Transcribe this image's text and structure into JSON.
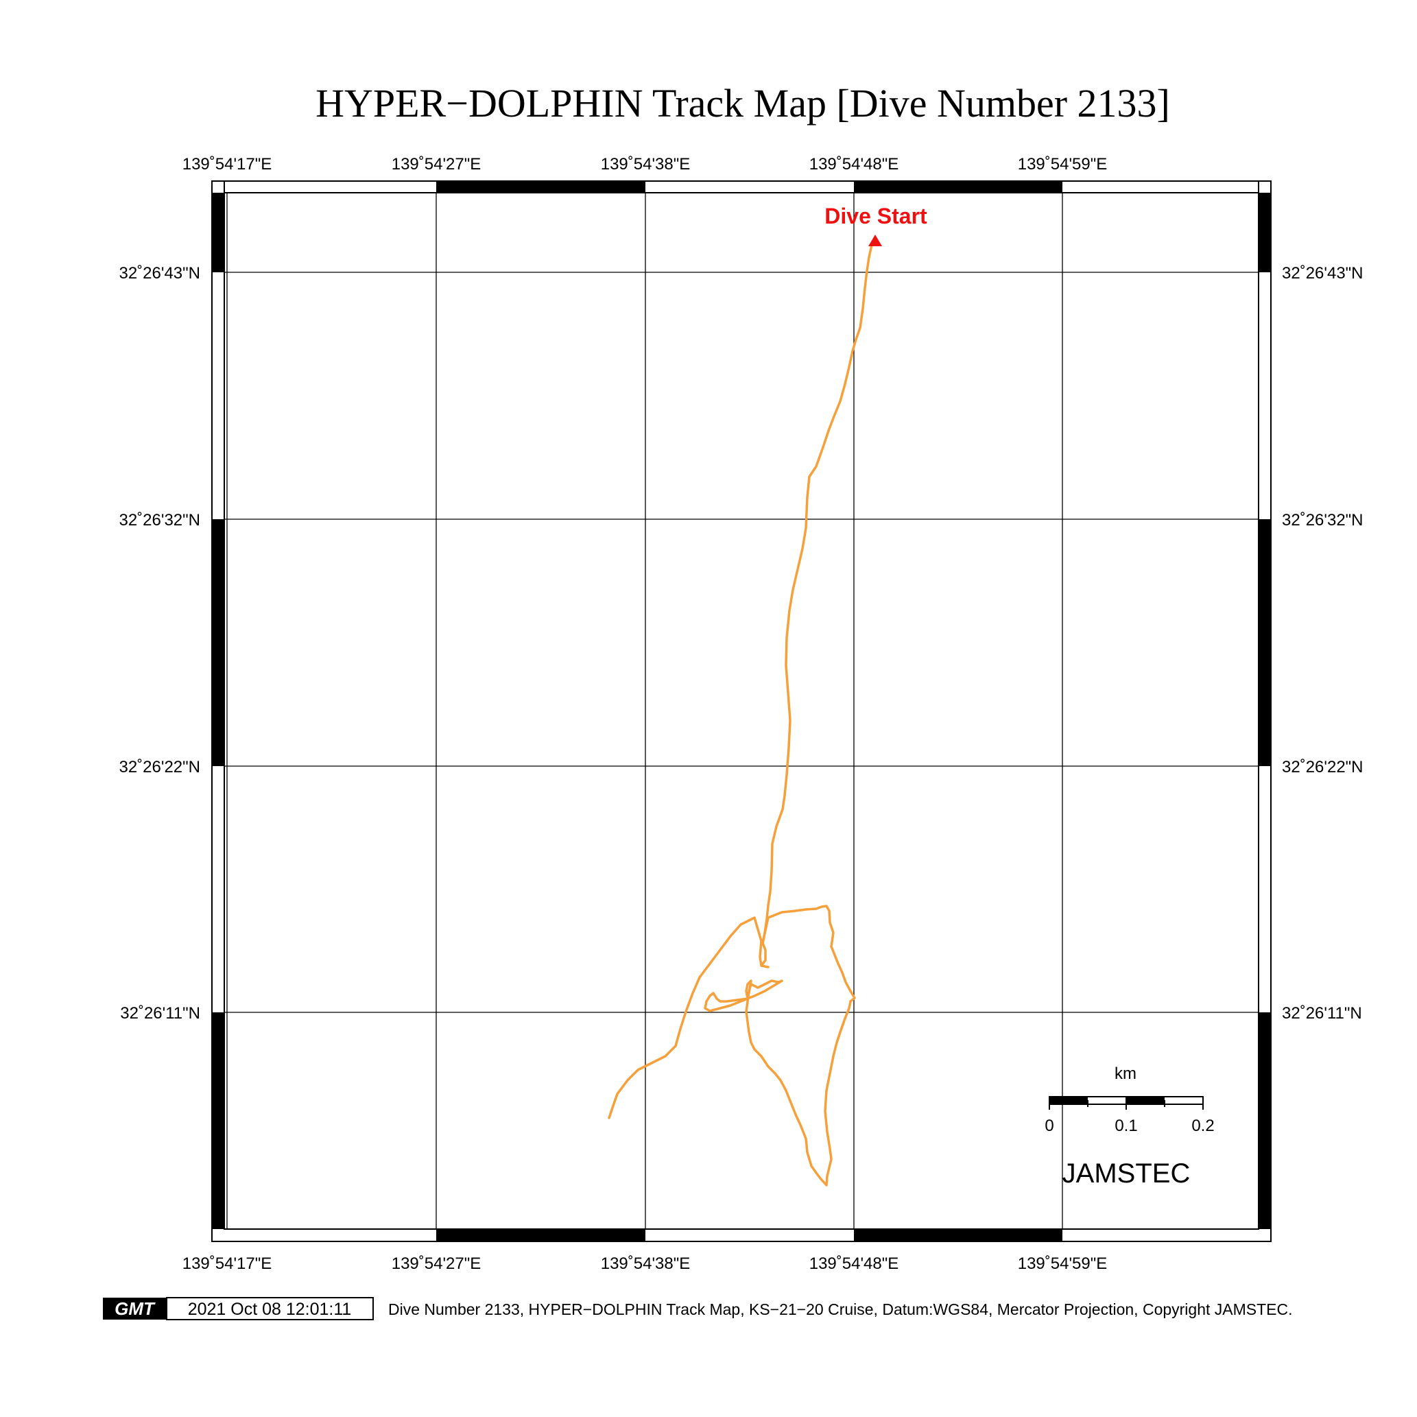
{
  "title": "HYPER−DOLPHIN Track Map [Dive Number 2133]",
  "lon_labels": [
    "139˚54'17\"E",
    "139˚54'27\"E",
    "139˚54'38\"E",
    "139˚54'48\"E",
    "139˚54'59\"E"
  ],
  "lat_labels": [
    "32˚26'43\"N",
    "32˚26'32\"N",
    "32˚26'22\"N",
    "32˚26'11\"N"
  ],
  "dive_start_label": "Dive Start",
  "scale_bar": {
    "unit": "km",
    "ticks": [
      "0",
      "0.1",
      "0.2"
    ]
  },
  "org_label": "JAMSTEC",
  "gmt_logo_text": "GMT",
  "timestamp": "2021 Oct 08 12:01:11",
  "footer_caption": "Dive Number 2133, HYPER−DOLPHIN Track Map, KS−21−20 Cruise, Datum:WGS84, Mercator Projection, Copyright JAMSTEC.",
  "colors": {
    "track": "#f5a03a",
    "marker": "#ee1111",
    "frame": "#000000"
  }
}
